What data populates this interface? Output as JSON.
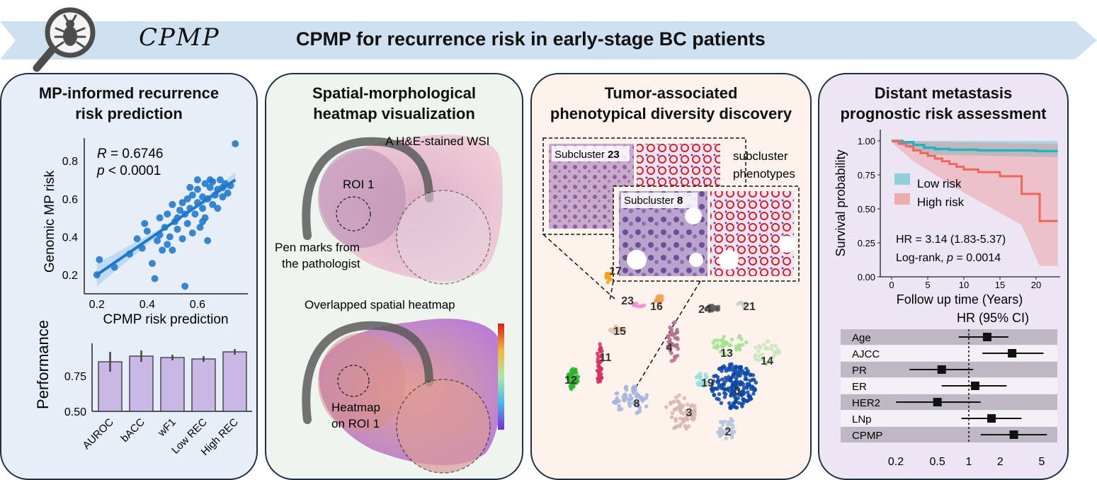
{
  "header": {
    "logo_text": "CPMP",
    "title": "CPMP for recurrence risk in early-stage BC patients",
    "icon": "magnifier-bug-icon"
  },
  "panel1": {
    "title_line1": "MP-informed recurrence",
    "title_line2": "risk prediction",
    "scatter": {
      "type": "scatter",
      "xlabel": "CPMP risk prediction",
      "ylabel": "Genomic MP risk",
      "xticks": [
        "0.2",
        "0.4",
        "0.6"
      ],
      "yticks": [
        "0.2",
        "0.4",
        "0.6",
        "0.8"
      ],
      "r_label": "R",
      "r_value": " = 0.6746",
      "p_label": "p",
      "p_value": " <  0.0001"
    },
    "bar": {
      "type": "bar",
      "ylabel": "Performance",
      "yticks": [
        "0.50",
        "0.75"
      ],
      "categories": [
        "AUROC",
        "bACC",
        "wF1",
        "Low REC",
        "High REC"
      ],
      "values": [
        0.85,
        0.89,
        0.88,
        0.87,
        0.92
      ],
      "errors": [
        0.07,
        0.04,
        0.02,
        0.02,
        0.02
      ],
      "ylim": [
        0.5,
        1.0
      ]
    }
  },
  "panel2": {
    "title_line1": "Spatial-morphological",
    "title_line2": "heatmap visualization",
    "label_wsi": "A H&E-stained WSI",
    "label_roi": "ROI 1",
    "label_pen1": "Pen marks from",
    "label_pen2": "the pathologist",
    "label_overlap": "Overlapped spatial heatmap",
    "label_heat1": "Heatmap",
    "label_heat2": "on ROI 1"
  },
  "panel3": {
    "title_line1": "Tumor-associated",
    "title_line2": "phenotypical diversity discovery",
    "label_sub1": "subcluster",
    "label_sub2": "phenotypes",
    "sub23_prefix": "Subcluster ",
    "sub23_num": "23",
    "sub8_prefix": "Subcluster ",
    "sub8_num": "8",
    "cluster_labels": [
      "17",
      "23",
      "16",
      "24",
      "21",
      "15",
      "4",
      "11",
      "13",
      "14",
      "12",
      "19",
      "0",
      "8",
      "3",
      "2"
    ]
  },
  "panel4": {
    "title_line1": "Distant metastasis",
    "title_line2": "prognostic risk assessment",
    "km": {
      "type": "line",
      "xlabel": "Follow up time (Years)",
      "ylabel": "Survival probability",
      "xticks": [
        "0",
        "5",
        "10",
        "15",
        "20"
      ],
      "yticks": [
        "0.00",
        "0.25",
        "0.50",
        "0.75",
        "1.00"
      ],
      "legend_low": "Low risk",
      "legend_high": "High risk",
      "hr_text": "HR = 3.14 (1.83-5.37)",
      "logrank_prefix": "Log-rank, ",
      "logrank_p": "p",
      "logrank_value": " = 0.0014",
      "colors": {
        "low": "#1fb5bd",
        "high": "#f0665e"
      }
    },
    "forest": {
      "type": "forest",
      "title": "HR (95% CI)",
      "rows": [
        {
          "label": "Age",
          "hr": 1.5,
          "lo": 0.8,
          "hi": 2.4
        },
        {
          "label": "AJCC",
          "hr": 2.6,
          "lo": 1.35,
          "hi": 5.2
        },
        {
          "label": "PR",
          "hr": 0.55,
          "lo": 0.27,
          "hi": 1.1
        },
        {
          "label": "ER",
          "hr": 1.15,
          "lo": 0.55,
          "hi": 2.3
        },
        {
          "label": "HER2",
          "hr": 0.5,
          "lo": 0.2,
          "hi": 1.3
        },
        {
          "label": "LNp",
          "hr": 1.65,
          "lo": 0.85,
          "hi": 3.2
        },
        {
          "label": "CPMP",
          "hr": 2.7,
          "lo": 1.3,
          "hi": 5.6
        }
      ],
      "xticks": [
        "0.2",
        "0.5",
        "1",
        "2",
        "5"
      ]
    }
  }
}
